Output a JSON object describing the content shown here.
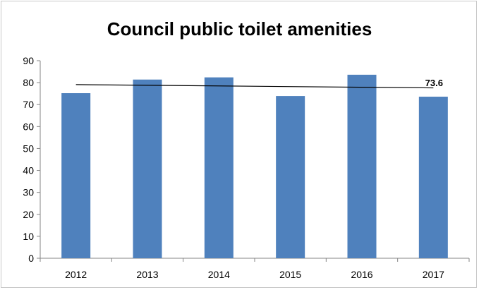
{
  "chart_data": {
    "type": "bar",
    "title": "Council public toilet amenities",
    "xlabel": "",
    "ylabel": "",
    "categories": [
      "2012",
      "2013",
      "2014",
      "2015",
      "2016",
      "2017"
    ],
    "values": [
      75.2,
      81.4,
      82.4,
      73.9,
      83.6,
      73.6
    ],
    "ylim": [
      0,
      90
    ],
    "yticks": [
      "0",
      "10",
      "20",
      "30",
      "40",
      "50",
      "60",
      "70",
      "80",
      "90"
    ],
    "grid": false,
    "legend": "none",
    "bar_color": "#4f81bd",
    "trendline": {
      "type": "linear",
      "start": 79.1,
      "end": 77.6,
      "color": "#000000"
    },
    "data_labels": [
      {
        "category": "2017",
        "text": "73.6"
      }
    ]
  }
}
